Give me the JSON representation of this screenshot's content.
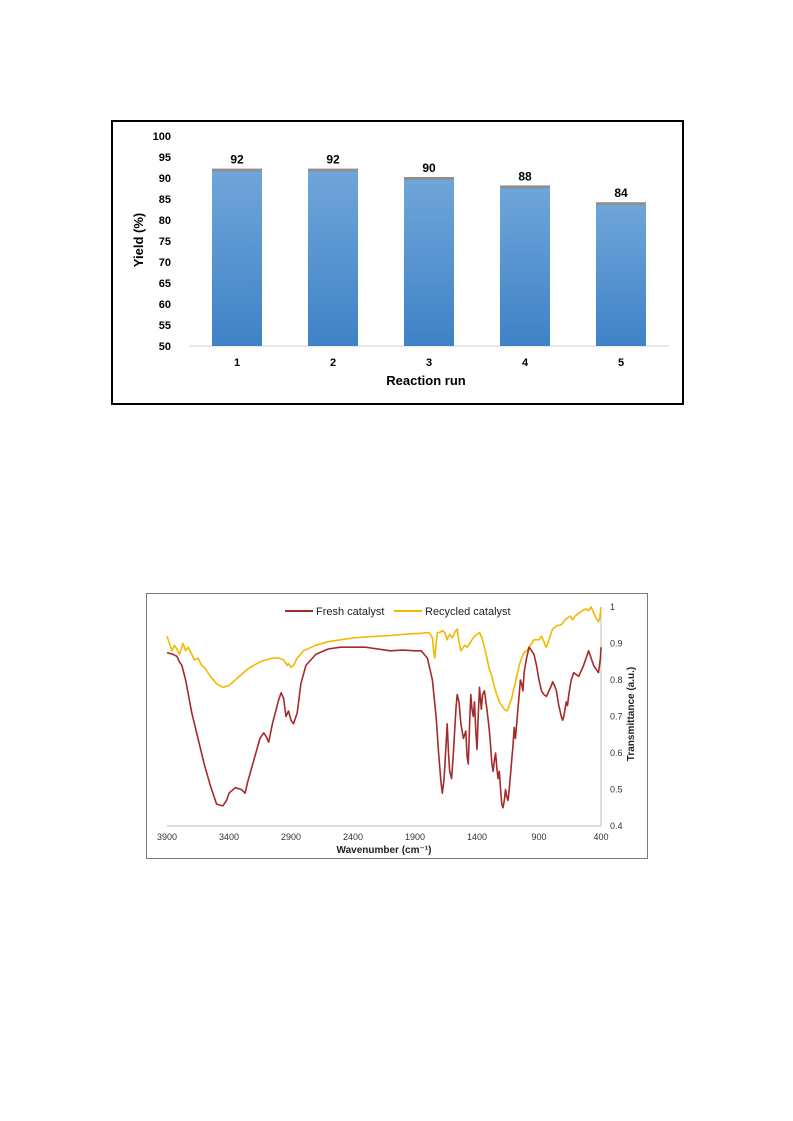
{
  "chart_data": [
    {
      "type": "bar",
      "categories": [
        "1",
        "2",
        "3",
        "4",
        "5"
      ],
      "values": [
        92,
        92,
        90,
        88,
        84
      ],
      "data_labels": [
        "92",
        "92",
        "90",
        "88",
        "84"
      ],
      "title": "",
      "xlabel": "Reaction run",
      "ylabel": "Yield (%)",
      "ylim": [
        50,
        100
      ],
      "yticks": [
        "50",
        "55",
        "60",
        "65",
        "70",
        "75",
        "80",
        "85",
        "90",
        "95",
        "100"
      ],
      "colors": {
        "bar_top": "#6fa6da",
        "bar_bottom": "#3f82c7",
        "cap": "#8f8f8f"
      },
      "grid": false,
      "legend": "none"
    },
    {
      "type": "line",
      "title": "",
      "xlabel": "Wavenumber (cm⁻¹)",
      "ylabel": "Transmittance (a.u.)",
      "xlim": [
        3900,
        400
      ],
      "ylim": [
        0.4,
        1.0
      ],
      "x_reversed": true,
      "xticks": [
        "3900",
        "3400",
        "2900",
        "2400",
        "1900",
        "1400",
        "900",
        "400"
      ],
      "yticks": [
        "0.4",
        "0.5",
        "0.6",
        "0.7",
        "0.8",
        "0.9",
        "1"
      ],
      "yaxis_side": "right",
      "grid": false,
      "legend": "top",
      "series": [
        {
          "name": "Fresh catalyst",
          "color": "#a52a2a",
          "points": [
            [
              3900,
              0.875
            ],
            [
              3850,
              0.87
            ],
            [
              3820,
              0.865
            ],
            [
              3800,
              0.85
            ],
            [
              3780,
              0.84
            ],
            [
              3750,
              0.8
            ],
            [
              3700,
              0.71
            ],
            [
              3650,
              0.64
            ],
            [
              3600,
              0.57
            ],
            [
              3550,
              0.51
            ],
            [
              3500,
              0.46
            ],
            [
              3450,
              0.455
            ],
            [
              3420,
              0.47
            ],
            [
              3400,
              0.49
            ],
            [
              3350,
              0.505
            ],
            [
              3300,
              0.5
            ],
            [
              3270,
              0.49
            ],
            [
              3250,
              0.52
            ],
            [
              3200,
              0.58
            ],
            [
              3150,
              0.64
            ],
            [
              3120,
              0.655
            ],
            [
              3100,
              0.645
            ],
            [
              3080,
              0.63
            ],
            [
              3050,
              0.68
            ],
            [
              3000,
              0.745
            ],
            [
              2980,
              0.765
            ],
            [
              2960,
              0.75
            ],
            [
              2940,
              0.7
            ],
            [
              2920,
              0.715
            ],
            [
              2900,
              0.69
            ],
            [
              2880,
              0.68
            ],
            [
              2850,
              0.71
            ],
            [
              2820,
              0.79
            ],
            [
              2780,
              0.84
            ],
            [
              2700,
              0.87
            ],
            [
              2600,
              0.885
            ],
            [
              2500,
              0.89
            ],
            [
              2400,
              0.89
            ],
            [
              2300,
              0.89
            ],
            [
              2200,
              0.885
            ],
            [
              2100,
              0.88
            ],
            [
              2000,
              0.882
            ],
            [
              1900,
              0.88
            ],
            [
              1850,
              0.88
            ],
            [
              1800,
              0.86
            ],
            [
              1760,
              0.8
            ],
            [
              1730,
              0.7
            ],
            [
              1710,
              0.6
            ],
            [
              1690,
              0.52
            ],
            [
              1680,
              0.49
            ],
            [
              1665,
              0.53
            ],
            [
              1650,
              0.62
            ],
            [
              1640,
              0.68
            ],
            [
              1630,
              0.6
            ],
            [
              1620,
              0.55
            ],
            [
              1605,
              0.53
            ],
            [
              1590,
              0.6
            ],
            [
              1570,
              0.72
            ],
            [
              1560,
              0.76
            ],
            [
              1545,
              0.74
            ],
            [
              1530,
              0.68
            ],
            [
              1510,
              0.64
            ],
            [
              1490,
              0.66
            ],
            [
              1480,
              0.59
            ],
            [
              1470,
              0.57
            ],
            [
              1460,
              0.68
            ],
            [
              1450,
              0.76
            ],
            [
              1440,
              0.72
            ],
            [
              1430,
              0.7
            ],
            [
              1420,
              0.74
            ],
            [
              1410,
              0.66
            ],
            [
              1400,
              0.61
            ],
            [
              1390,
              0.7
            ],
            [
              1380,
              0.78
            ],
            [
              1365,
              0.72
            ],
            [
              1355,
              0.76
            ],
            [
              1340,
              0.77
            ],
            [
              1320,
              0.72
            ],
            [
              1310,
              0.69
            ],
            [
              1300,
              0.66
            ],
            [
              1290,
              0.62
            ],
            [
              1280,
              0.57
            ],
            [
              1270,
              0.55
            ],
            [
              1260,
              0.58
            ],
            [
              1250,
              0.6
            ],
            [
              1240,
              0.56
            ],
            [
              1230,
              0.53
            ],
            [
              1220,
              0.55
            ],
            [
              1210,
              0.5
            ],
            [
              1200,
              0.46
            ],
            [
              1190,
              0.45
            ],
            [
              1180,
              0.47
            ],
            [
              1170,
              0.5
            ],
            [
              1160,
              0.48
            ],
            [
              1150,
              0.47
            ],
            [
              1140,
              0.5
            ],
            [
              1130,
              0.54
            ],
            [
              1120,
              0.58
            ],
            [
              1110,
              0.62
            ],
            [
              1100,
              0.67
            ],
            [
              1090,
              0.64
            ],
            [
              1080,
              0.68
            ],
            [
              1070,
              0.72
            ],
            [
              1060,
              0.76
            ],
            [
              1050,
              0.8
            ],
            [
              1040,
              0.79
            ],
            [
              1030,
              0.77
            ],
            [
              1020,
              0.82
            ],
            [
              1000,
              0.86
            ],
            [
              980,
              0.89
            ],
            [
              960,
              0.88
            ],
            [
              940,
              0.87
            ],
            [
              920,
              0.84
            ],
            [
              900,
              0.8
            ],
            [
              880,
              0.77
            ],
            [
              860,
              0.76
            ],
            [
              840,
              0.755
            ],
            [
              820,
              0.77
            ],
            [
              800,
              0.785
            ],
            [
              790,
              0.795
            ],
            [
              775,
              0.785
            ],
            [
              760,
              0.77
            ],
            [
              740,
              0.73
            ],
            [
              720,
              0.7
            ],
            [
              710,
              0.69
            ],
            [
              700,
              0.7
            ],
            [
              690,
              0.72
            ],
            [
              680,
              0.74
            ],
            [
              670,
              0.73
            ],
            [
              660,
              0.76
            ],
            [
              640,
              0.8
            ],
            [
              620,
              0.82
            ],
            [
              600,
              0.815
            ],
            [
              580,
              0.81
            ],
            [
              560,
              0.825
            ],
            [
              540,
              0.84
            ],
            [
              520,
              0.86
            ],
            [
              500,
              0.88
            ],
            [
              480,
              0.86
            ],
            [
              460,
              0.84
            ],
            [
              440,
              0.83
            ],
            [
              420,
              0.82
            ],
            [
              405,
              0.86
            ],
            [
              400,
              0.89
            ]
          ]
        },
        {
          "name": "Recycled catalyst",
          "color": "#f5b800",
          "points": [
            [
              3900,
              0.92
            ],
            [
              3880,
              0.9
            ],
            [
              3860,
              0.88
            ],
            [
              3840,
              0.895
            ],
            [
              3820,
              0.885
            ],
            [
              3800,
              0.87
            ],
            [
              3790,
              0.88
            ],
            [
              3770,
              0.9
            ],
            [
              3750,
              0.88
            ],
            [
              3730,
              0.89
            ],
            [
              3700,
              0.87
            ],
            [
              3680,
              0.855
            ],
            [
              3650,
              0.86
            ],
            [
              3620,
              0.84
            ],
            [
              3600,
              0.835
            ],
            [
              3550,
              0.81
            ],
            [
              3500,
              0.79
            ],
            [
              3450,
              0.78
            ],
            [
              3400,
              0.785
            ],
            [
              3350,
              0.8
            ],
            [
              3300,
              0.815
            ],
            [
              3250,
              0.83
            ],
            [
              3200,
              0.84
            ],
            [
              3150,
              0.85
            ],
            [
              3100,
              0.855
            ],
            [
              3050,
              0.86
            ],
            [
              3000,
              0.86
            ],
            [
              2960,
              0.855
            ],
            [
              2930,
              0.84
            ],
            [
              2920,
              0.845
            ],
            [
              2900,
              0.835
            ],
            [
              2880,
              0.84
            ],
            [
              2850,
              0.86
            ],
            [
              2800,
              0.88
            ],
            [
              2700,
              0.895
            ],
            [
              2600,
              0.905
            ],
            [
              2500,
              0.91
            ],
            [
              2400,
              0.915
            ],
            [
              2300,
              0.918
            ],
            [
              2200,
              0.92
            ],
            [
              2100,
              0.922
            ],
            [
              2000,
              0.925
            ],
            [
              1900,
              0.927
            ],
            [
              1850,
              0.928
            ],
            [
              1800,
              0.93
            ],
            [
              1780,
              0.928
            ],
            [
              1760,
              0.915
            ],
            [
              1750,
              0.88
            ],
            [
              1740,
              0.86
            ],
            [
              1730,
              0.9
            ],
            [
              1720,
              0.93
            ],
            [
              1700,
              0.93
            ],
            [
              1680,
              0.935
            ],
            [
              1660,
              0.93
            ],
            [
              1650,
              0.92
            ],
            [
              1640,
              0.91
            ],
            [
              1630,
              0.92
            ],
            [
              1620,
              0.925
            ],
            [
              1600,
              0.915
            ],
            [
              1580,
              0.93
            ],
            [
              1560,
              0.94
            ],
            [
              1550,
              0.915
            ],
            [
              1530,
              0.88
            ],
            [
              1510,
              0.89
            ],
            [
              1500,
              0.895
            ],
            [
              1480,
              0.89
            ],
            [
              1460,
              0.9
            ],
            [
              1440,
              0.91
            ],
            [
              1420,
              0.92
            ],
            [
              1400,
              0.925
            ],
            [
              1380,
              0.93
            ],
            [
              1360,
              0.915
            ],
            [
              1340,
              0.89
            ],
            [
              1320,
              0.86
            ],
            [
              1300,
              0.83
            ],
            [
              1280,
              0.81
            ],
            [
              1260,
              0.78
            ],
            [
              1240,
              0.76
            ],
            [
              1220,
              0.74
            ],
            [
              1200,
              0.73
            ],
            [
              1180,
              0.72
            ],
            [
              1160,
              0.715
            ],
            [
              1150,
              0.72
            ],
            [
              1140,
              0.73
            ],
            [
              1120,
              0.75
            ],
            [
              1100,
              0.78
            ],
            [
              1080,
              0.81
            ],
            [
              1060,
              0.84
            ],
            [
              1040,
              0.86
            ],
            [
              1020,
              0.875
            ],
            [
              1000,
              0.88
            ],
            [
              980,
              0.89
            ],
            [
              960,
              0.9
            ],
            [
              940,
              0.91
            ],
            [
              920,
              0.91
            ],
            [
              900,
              0.91
            ],
            [
              880,
              0.92
            ],
            [
              860,
              0.905
            ],
            [
              850,
              0.895
            ],
            [
              840,
              0.89
            ],
            [
              830,
              0.9
            ],
            [
              810,
              0.92
            ],
            [
              790,
              0.94
            ],
            [
              770,
              0.945
            ],
            [
              750,
              0.95
            ],
            [
              730,
              0.95
            ],
            [
              710,
              0.955
            ],
            [
              690,
              0.965
            ],
            [
              670,
              0.97
            ],
            [
              650,
              0.975
            ],
            [
              630,
              0.965
            ],
            [
              610,
              0.975
            ],
            [
              590,
              0.98
            ],
            [
              570,
              0.985
            ],
            [
              550,
              0.99
            ],
            [
              520,
              0.995
            ],
            [
              500,
              0.99
            ],
            [
              480,
              1.0
            ],
            [
              460,
              0.985
            ],
            [
              440,
              0.97
            ],
            [
              420,
              0.96
            ],
            [
              410,
              0.97
            ],
            [
              400,
              1.0
            ]
          ]
        }
      ]
    }
  ]
}
